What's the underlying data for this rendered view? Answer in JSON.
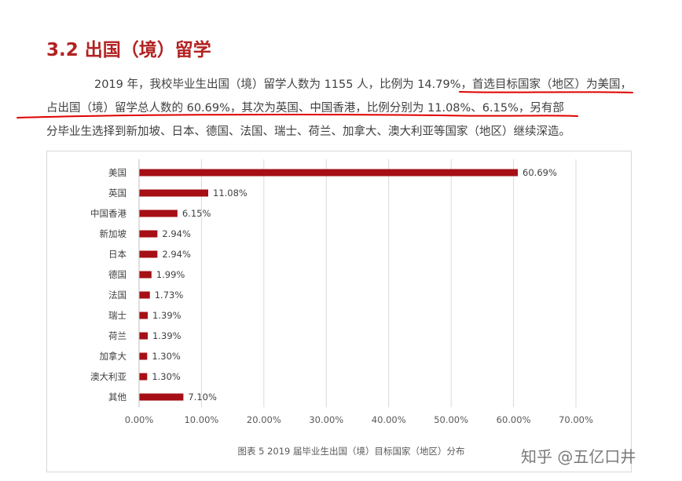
{
  "heading": "3.2 出国（境）留学",
  "paragraph": {
    "line1": "2019 年，我校毕业生出国（境）留学人数为 1155 人，比例为 14.79%，首选目标国家（地区）为美国，",
    "line2": "占出国（境）留学总人数的 60.69%，其次为英国、中国香港，比例分别为 11.08%、6.15%，另有部",
    "line3": "分毕业生选择到新加坡、日本、德国、法国、瑞士、荷兰、加拿大、澳大利亚等国家（地区）继续深造。"
  },
  "annotation_color": "#e00000",
  "watermark": "知乎 @五亿口井",
  "chart_data": {
    "type": "bar",
    "orientation": "horizontal",
    "title": "图表 5 2019 届毕业生出国（境）目标国家（地区）分布",
    "categories": [
      "美国",
      "英国",
      "中国香港",
      "新加坡",
      "日本",
      "德国",
      "法国",
      "瑞士",
      "荷兰",
      "加拿大",
      "澳大利亚",
      "其他"
    ],
    "values": [
      60.69,
      11.08,
      6.15,
      2.94,
      2.94,
      1.99,
      1.73,
      1.39,
      1.39,
      1.3,
      1.3,
      7.1
    ],
    "value_labels": [
      "60.69%",
      "11.08%",
      "6.15%",
      "2.94%",
      "2.94%",
      "1.99%",
      "1.73%",
      "1.39%",
      "1.39%",
      "1.30%",
      "1.30%",
      "7.10%"
    ],
    "xlim": [
      0,
      70
    ],
    "xticks": [
      "0.00%",
      "10.00%",
      "20.00%",
      "30.00%",
      "40.00%",
      "50.00%",
      "60.00%",
      "70.00%"
    ],
    "grid": true,
    "bar_color": "#a50f15"
  }
}
